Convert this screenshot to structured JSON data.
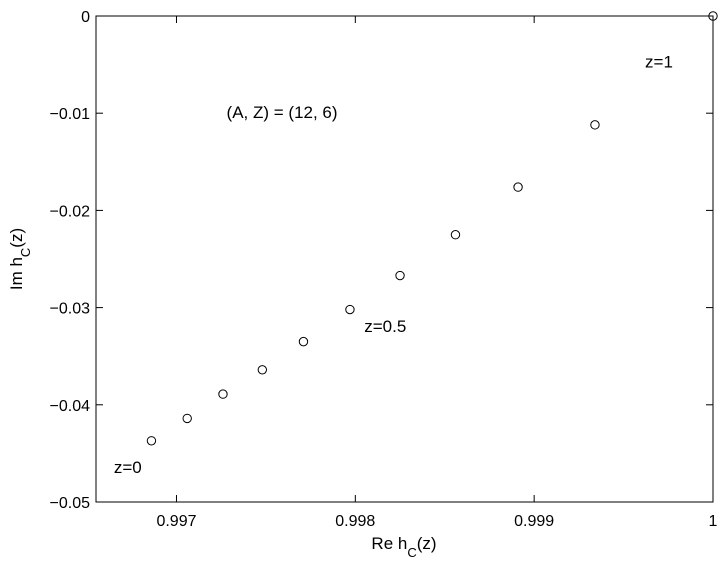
{
  "chart_data": {
    "type": "scatter",
    "series": [
      {
        "marker": "open-circle",
        "color": "#000000",
        "points": [
          {
            "x": 0.99686,
            "y": -0.0437
          },
          {
            "x": 0.99706,
            "y": -0.0414
          },
          {
            "x": 0.99726,
            "y": -0.0389
          },
          {
            "x": 0.99748,
            "y": -0.0364
          },
          {
            "x": 0.99771,
            "y": -0.0335
          },
          {
            "x": 0.99797,
            "y": -0.0302
          },
          {
            "x": 0.99825,
            "y": -0.0267
          },
          {
            "x": 0.99856,
            "y": -0.0225
          },
          {
            "x": 0.99891,
            "y": -0.0176
          },
          {
            "x": 0.99934,
            "y": -0.0112
          },
          {
            "x": 1.0,
            "y": 0.0
          }
        ]
      }
    ],
    "xlim": [
      0.99655,
      1.0
    ],
    "ylim": [
      -0.05,
      0.0
    ],
    "xticks": [
      {
        "value": 0.997,
        "label": "0.997"
      },
      {
        "value": 0.998,
        "label": "0.998"
      },
      {
        "value": 0.999,
        "label": "0.999"
      },
      {
        "value": 1.0,
        "label": "1"
      }
    ],
    "yticks": [
      {
        "value": 0.0,
        "label": "0"
      },
      {
        "value": -0.01,
        "label": "−0.01"
      },
      {
        "value": -0.02,
        "label": "−0.02"
      },
      {
        "value": -0.03,
        "label": "−0.03"
      },
      {
        "value": -0.04,
        "label": "−0.04"
      },
      {
        "value": -0.05,
        "label": "−0.05"
      }
    ],
    "xlabel": {
      "main": "Re h",
      "sub": "C",
      "tail": "(z)"
    },
    "ylabel": {
      "main": "Im h",
      "sub": "C",
      "tail": "(z)"
    },
    "grid": false,
    "annotations": [
      {
        "text": "(A, Z) = (12, 6)",
        "x": 0.99728,
        "y": -0.0105
      },
      {
        "text": "z=1",
        "x": 0.99962,
        "y": -0.0053
      },
      {
        "text": "z=0.5",
        "x": 0.99805,
        "y": -0.0325
      },
      {
        "text": "z=0",
        "x": 0.99665,
        "y": -0.047
      }
    ]
  }
}
